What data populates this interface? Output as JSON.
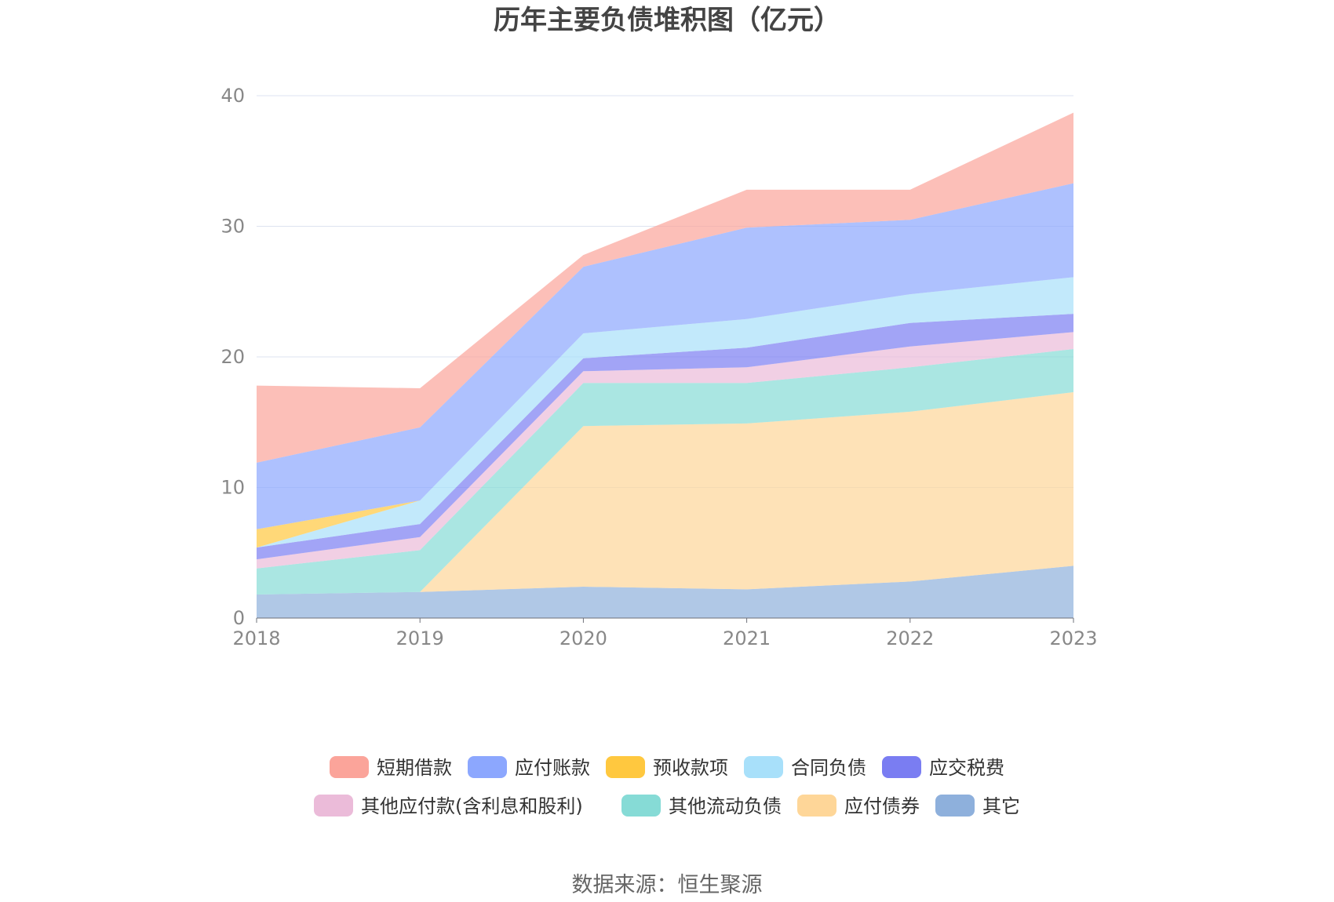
{
  "chart_data": {
    "type": "area",
    "stacked": true,
    "title": "历年主要负债堆积图（亿元）",
    "xlabel": "",
    "ylabel": "",
    "categories": [
      "2018",
      "2019",
      "2020",
      "2021",
      "2022",
      "2023"
    ],
    "ylim": [
      0,
      40
    ],
    "yticks": [
      0,
      10,
      20,
      30,
      40
    ],
    "grid": true,
    "legend_position": "bottom",
    "series": [
      {
        "name": "其它",
        "color": "#8eb0dc",
        "values": [
          1.8,
          2.0,
          2.4,
          2.2,
          2.8,
          4.0
        ]
      },
      {
        "name": "应付债券",
        "color": "#fed698",
        "values": [
          0,
          0,
          12.3,
          12.7,
          13.0,
          13.3
        ]
      },
      {
        "name": "其他流动负债",
        "color": "#86dbd6",
        "values": [
          2.0,
          3.2,
          3.3,
          3.1,
          3.4,
          3.3
        ]
      },
      {
        "name": "其他应付款(含利息和股利)",
        "color": "#ebbbd9",
        "values": [
          0.7,
          1.0,
          0.9,
          1.2,
          1.6,
          1.3
        ]
      },
      {
        "name": "应交税费",
        "color": "#7a7df2",
        "values": [
          0.9,
          1.0,
          1.0,
          1.5,
          1.8,
          1.4
        ]
      },
      {
        "name": "合同负债",
        "color": "#a8e0fa",
        "values": [
          0,
          1.8,
          1.9,
          2.2,
          2.2,
          2.8
        ]
      },
      {
        "name": "预收款项",
        "color": "#ffc83f",
        "values": [
          1.4,
          0,
          0,
          0,
          0,
          0
        ]
      },
      {
        "name": "应付账款",
        "color": "#8ca7fe",
        "values": [
          5.1,
          5.6,
          5.1,
          7.0,
          5.7,
          7.2
        ]
      },
      {
        "name": "短期借款",
        "color": "#fba49a",
        "values": [
          5.9,
          3.0,
          0.9,
          2.9,
          2.3,
          5.4
        ]
      }
    ],
    "legend_order": [
      "短期借款",
      "应付账款",
      "预收款项",
      "合同负债",
      "应交税费",
      "其他应付款(含利息和股利)",
      "其他流动负债",
      "应付债券",
      "其它"
    ]
  },
  "source": "数据来源：恒生聚源",
  "colors": {
    "grid": "#dde3f0",
    "axis": "#6e7079",
    "tick_text": "#888888"
  }
}
